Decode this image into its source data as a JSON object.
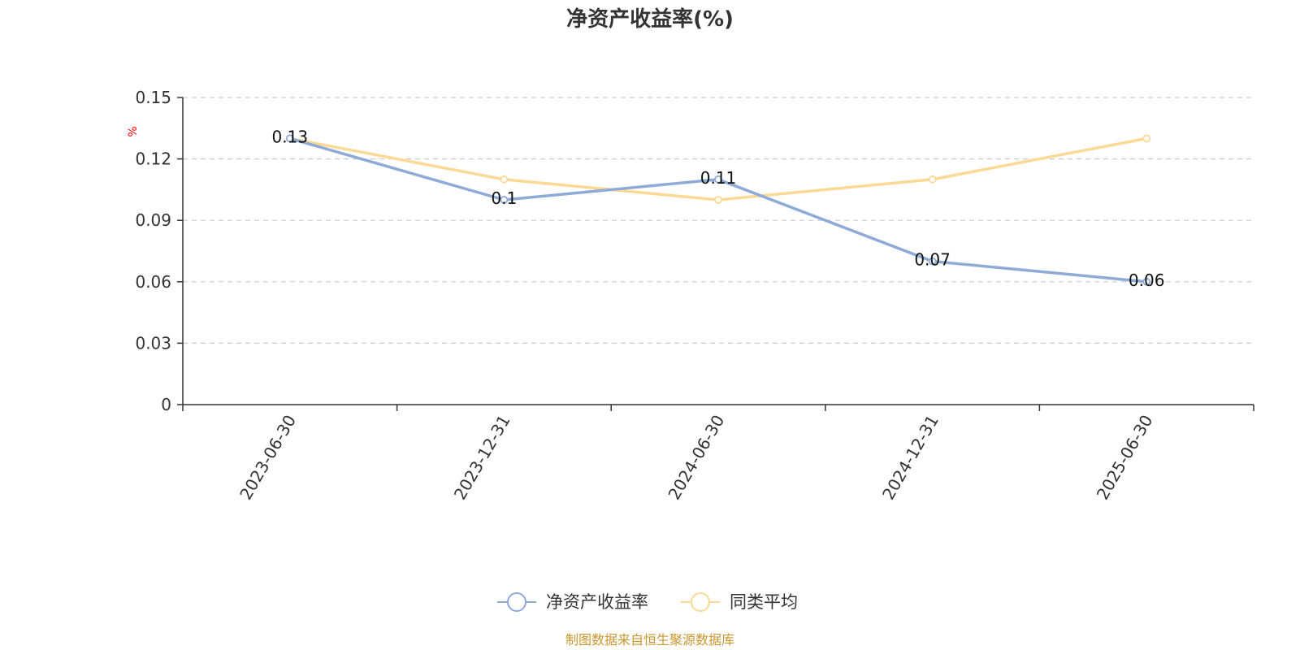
{
  "chart_data": {
    "type": "line",
    "title": "净资产收益率(%)",
    "y_unit": "%",
    "categories": [
      "2023-06-30",
      "2023-12-31",
      "2024-06-30",
      "2024-12-31",
      "2025-06-30"
    ],
    "ylim": [
      0,
      0.15
    ],
    "yticks": [
      "0",
      "0.03",
      "0.06",
      "0.09",
      "0.12",
      "0.15"
    ],
    "grid": true,
    "legend_position": "bottom-center",
    "series": [
      {
        "name": "净资产收益率",
        "values": [
          0.13,
          0.1,
          0.11,
          0.07,
          0.06
        ],
        "labels": [
          "0.13",
          "0.1",
          "0.11",
          "0.07",
          "0.06"
        ],
        "color": "#8eaad6"
      },
      {
        "name": "同类平均",
        "values": [
          0.13,
          0.11,
          0.1,
          0.11,
          0.13
        ],
        "color": "#fbd994"
      }
    ],
    "source": "制图数据来自恒生聚源数据库"
  }
}
